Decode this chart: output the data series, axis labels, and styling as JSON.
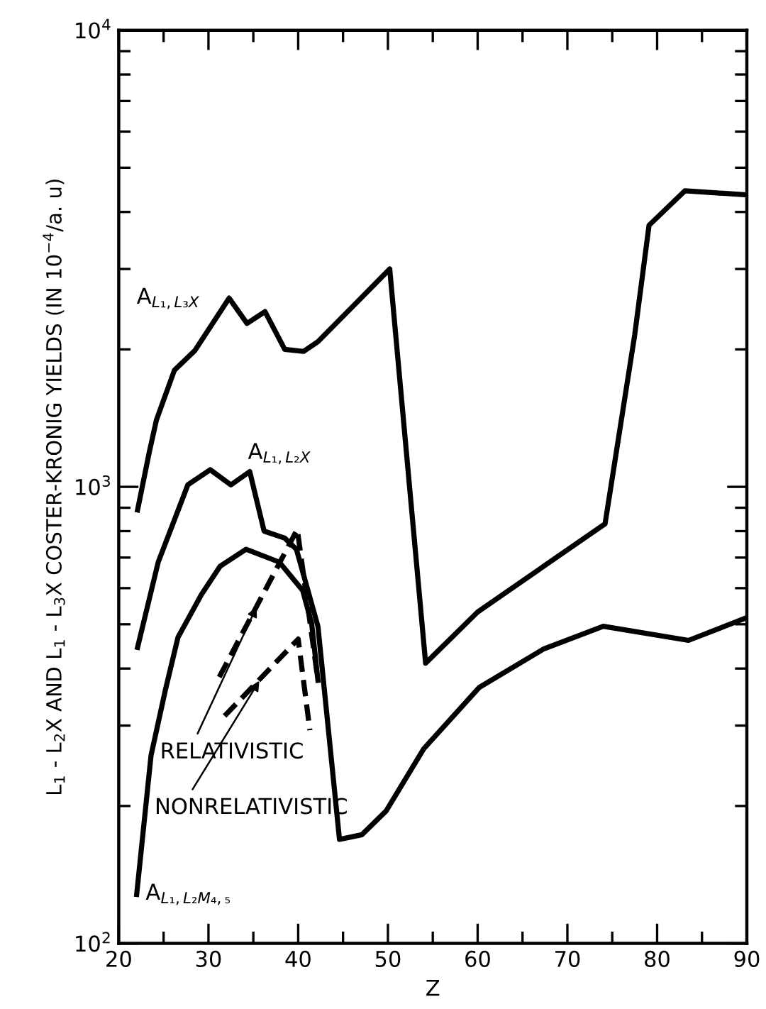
{
  "chart_data": {
    "type": "line",
    "xlabel": "Z",
    "ylabel": "L$_{1}$ - L$_{2}$X AND L$_{1}$ - L$_{3}$X COSTER-KRONIG YIELDS (IN 10$^{−4}$/a. u)",
    "xlim": [
      20,
      90
    ],
    "xticks": [
      20,
      30,
      40,
      50,
      60,
      70,
      80,
      90
    ],
    "ylim": [
      100,
      10000
    ],
    "yticks": [
      {
        "value": 100,
        "label": "10$^{2}$"
      },
      {
        "value": 1000,
        "label": "10$^{3}$"
      },
      {
        "value": 10000,
        "label": "10$^{4}$"
      }
    ],
    "log": "y",
    "grid": false,
    "legend": false,
    "series": [
      {
        "name": "A$_{L₁,L₃X}$",
        "color": "#000000",
        "line_style": "solid",
        "x": [
          22.1,
          23.4,
          24.2,
          26.2,
          28.5,
          32.3,
          34.3,
          36.3,
          38.5,
          40.6,
          42.2,
          50.2,
          54.2,
          60.0,
          74.2,
          77.5,
          79.1,
          83.1,
          90
        ],
        "values": [
          890,
          1190,
          1400,
          1800,
          1990,
          2590,
          2280,
          2420,
          2000,
          1980,
          2080,
          3000,
          411,
          532,
          830,
          2150,
          3740,
          4450,
          4360
        ]
      },
      {
        "name": "A$_{L₁,L₂X}$",
        "color": "#000000",
        "line_style": "solid",
        "x": [
          22.1,
          24.4,
          27.7,
          30.2,
          32.5,
          34.6,
          36.2,
          38.5,
          39.8,
          42.2,
          44.6,
          47.1,
          49.8,
          54.0,
          60.2,
          67.4,
          74.0,
          83.5,
          90
        ],
        "values": [
          445,
          684,
          1010,
          1090,
          1010,
          1080,
          800,
          772,
          730,
          495,
          169,
          173,
          195,
          267,
          364,
          442,
          495,
          461,
          517
        ]
      },
      {
        "name": "A$_{L₁,L₂M₄,₅}$",
        "color": "#000000",
        "line_style": "solid",
        "x": [
          22.0,
          23.6,
          25.2,
          26.6,
          29.2,
          31.3,
          34.2,
          37.9,
          40.5,
          41.5,
          42.2
        ],
        "values": [
          128,
          258,
          359,
          468,
          580,
          670,
          730,
          684,
          593,
          502,
          377
        ]
      },
      {
        "name": "RELATIVISTIC",
        "color": "#000000",
        "line_style": "dashed",
        "x": [
          31.2,
          39.9,
          42.2
        ],
        "values": [
          383,
          807,
          377
        ]
      },
      {
        "name": "NONRELATIVISTIC",
        "color": "#000000",
        "line_style": "dashed",
        "x": [
          31.8,
          40.0,
          41.3
        ],
        "values": [
          315,
          464,
          293
        ]
      }
    ]
  }
}
